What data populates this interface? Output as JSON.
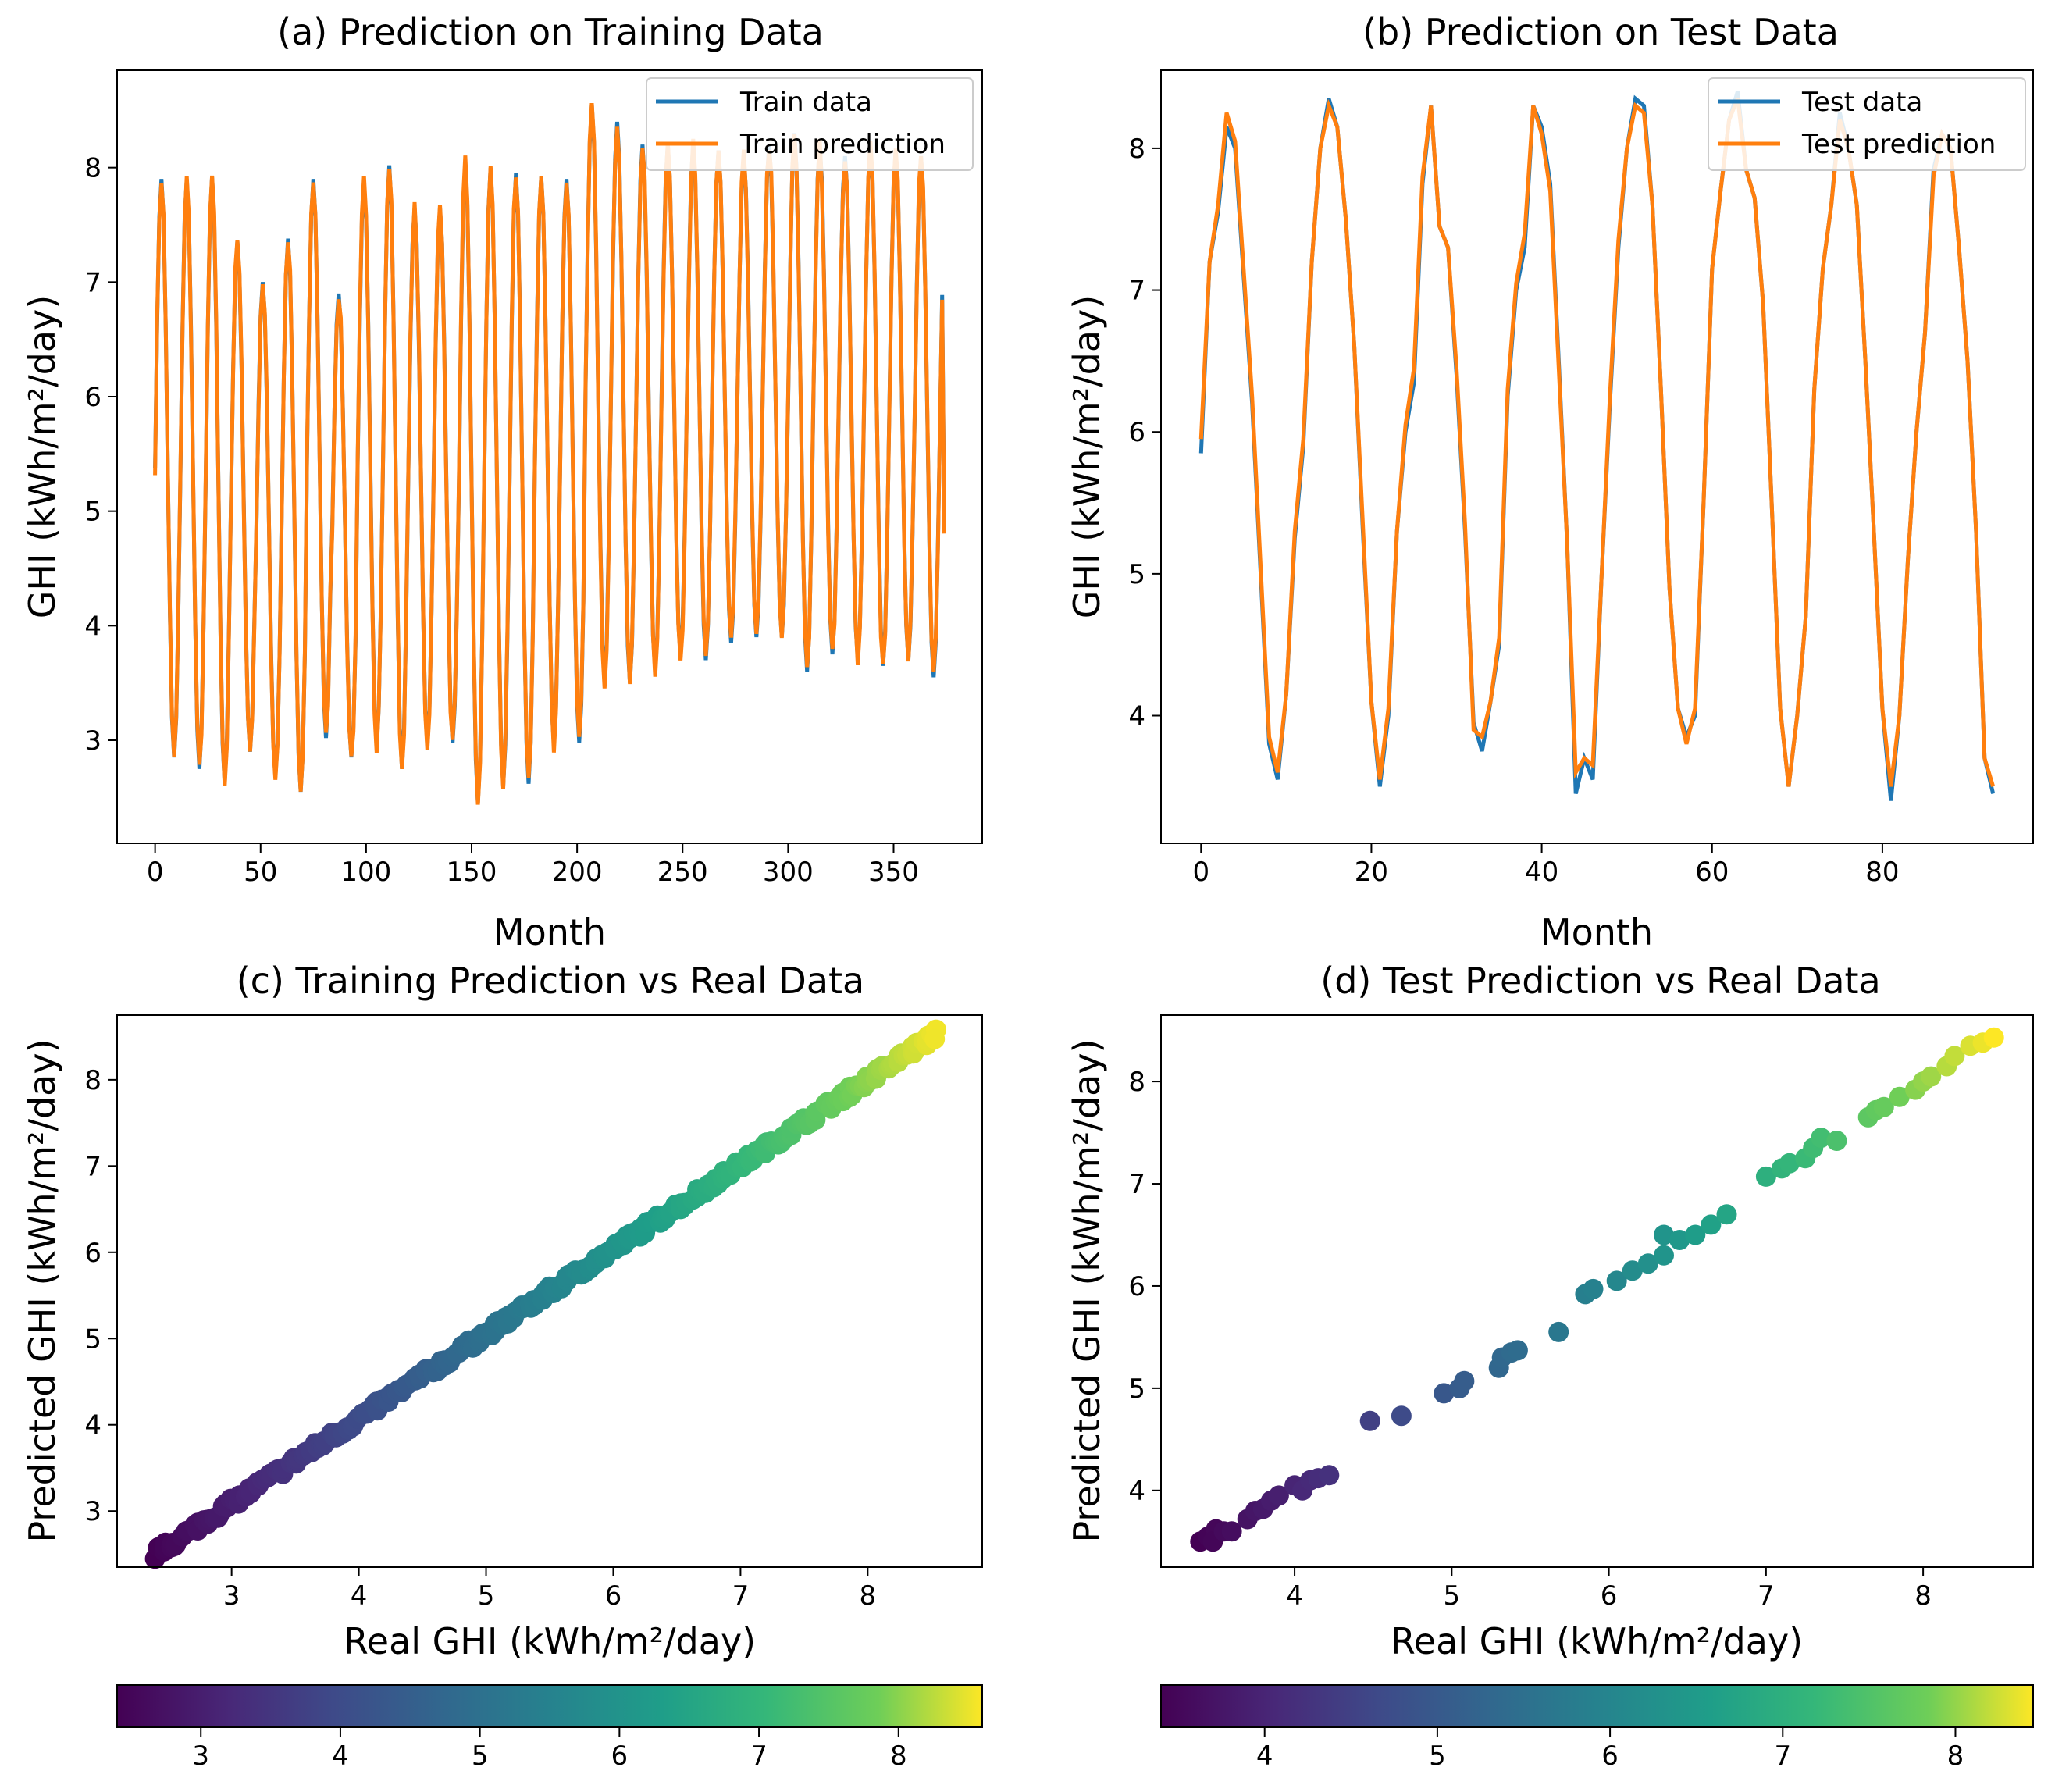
{
  "chart_data": [
    {
      "id": "a",
      "type": "line",
      "title": "(a) Prediction on Training Data",
      "xlabel": "Month",
      "ylabel": "GHI (kWh/m²/day)",
      "xlim": [
        -18,
        392
      ],
      "ylim": [
        2.1,
        8.85
      ],
      "xticks": [
        0,
        50,
        100,
        150,
        200,
        250,
        300,
        350
      ],
      "yticks": [
        3,
        4,
        5,
        6,
        7,
        8
      ],
      "legend_position": "top-right",
      "generator": "monthly-seasonal",
      "n": 375,
      "phase": 3,
      "period": 12,
      "series": [
        {
          "name": "Train data",
          "color": "#1f77b4"
        },
        {
          "name": "Train prediction",
          "color": "#ff7f0e"
        }
      ],
      "yearly_peak": [
        7.9,
        7.9,
        7.92,
        7.36,
        7.0,
        7.38,
        7.9,
        6.9,
        7.88,
        8.02,
        7.65,
        7.65,
        8.05,
        8.0,
        7.95,
        7.92,
        7.9,
        8.55,
        8.4,
        8.2,
        8.2,
        8.2,
        8.15,
        8.1,
        8.2,
        8.3,
        8.2,
        8.1,
        8.2,
        8.15,
        8.1,
        8.0
      ],
      "yearly_trough": [
        2.85,
        2.75,
        2.62,
        2.9,
        2.68,
        2.55,
        3.02,
        2.85,
        2.95,
        2.75,
        2.95,
        2.98,
        2.45,
        2.6,
        2.62,
        2.95,
        2.98,
        3.5,
        3.5,
        3.6,
        3.72,
        3.7,
        3.85,
        3.9,
        3.9,
        3.6,
        3.75,
        3.7,
        3.65,
        3.7,
        3.55,
        3.55
      ],
      "end_value": 4.85
    },
    {
      "id": "b",
      "type": "line",
      "title": "(b) Prediction on Test Data",
      "xlabel": "Month",
      "ylabel": "GHI (kWh/m²/day)",
      "xlim": [
        -4.7,
        97.7
      ],
      "ylim": [
        3.1,
        8.55
      ],
      "xticks": [
        0,
        20,
        40,
        60,
        80
      ],
      "yticks": [
        4,
        5,
        6,
        7,
        8
      ],
      "legend_position": "top-right",
      "series": [
        {
          "name": "Test data",
          "color": "#1f77b4",
          "values": [
            5.85,
            7.2,
            7.55,
            8.15,
            8.0,
            7.1,
            6.2,
            5.0,
            3.8,
            3.55,
            4.15,
            5.25,
            5.9,
            7.2,
            8.0,
            8.35,
            8.15,
            7.5,
            6.6,
            5.3,
            4.1,
            3.5,
            4.0,
            5.3,
            6.0,
            6.35,
            7.75,
            8.3,
            7.45,
            7.3,
            6.4,
            5.3,
            3.95,
            3.75,
            4.1,
            4.5,
            6.25,
            7.0,
            7.3,
            8.3,
            8.15,
            7.75,
            6.5,
            5.2,
            3.45,
            3.7,
            3.55,
            4.95,
            6.2,
            7.3,
            8.0,
            8.35,
            8.3,
            7.6,
            6.3,
            4.9,
            4.05,
            3.85,
            4.0,
            5.5,
            7.15,
            7.7,
            8.2,
            8.4,
            7.85,
            7.65,
            6.9,
            5.5,
            4.05,
            3.5,
            4.0,
            4.7,
            6.3,
            7.15,
            7.6,
            8.25,
            8.0,
            7.6,
            6.5,
            5.3,
            4.05,
            3.4,
            4.0,
            5.1,
            6.0,
            6.7,
            7.85,
            8.1,
            8.0,
            7.3,
            6.5,
            5.3,
            3.7,
            3.45
          ]
        },
        {
          "name": "Test prediction",
          "color": "#ff7f0e",
          "values": [
            5.95,
            7.2,
            7.6,
            8.25,
            8.05,
            7.15,
            6.25,
            5.05,
            3.85,
            3.6,
            4.15,
            5.3,
            5.95,
            7.2,
            8.0,
            8.3,
            8.15,
            7.5,
            6.6,
            5.35,
            4.1,
            3.55,
            4.05,
            5.3,
            6.05,
            6.45,
            7.8,
            8.3,
            7.45,
            7.3,
            6.45,
            5.35,
            3.9,
            3.85,
            4.1,
            4.55,
            6.3,
            7.05,
            7.4,
            8.3,
            8.1,
            7.7,
            6.45,
            5.2,
            3.6,
            3.7,
            3.65,
            4.95,
            6.25,
            7.35,
            8.0,
            8.3,
            8.25,
            7.6,
            6.3,
            4.9,
            4.05,
            3.8,
            4.05,
            5.5,
            7.15,
            7.7,
            8.2,
            8.35,
            7.85,
            7.65,
            6.9,
            5.5,
            4.05,
            3.5,
            4.0,
            4.7,
            6.3,
            7.15,
            7.6,
            8.2,
            8.0,
            7.6,
            6.5,
            5.3,
            4.05,
            3.5,
            4.0,
            5.1,
            6.0,
            6.7,
            7.8,
            8.1,
            8.0,
            7.3,
            6.5,
            5.3,
            3.7,
            3.5
          ]
        }
      ]
    },
    {
      "id": "c",
      "type": "scatter",
      "title": "(c) Training Prediction vs Real Data",
      "xlabel": "Real GHI (kWh/m²/day)",
      "ylabel": "Predicted GHI (kWh/m²/day)",
      "xlim": [
        2.1,
        8.9
      ],
      "ylim": [
        2.35,
        8.75
      ],
      "xticks": [
        3,
        4,
        5,
        6,
        7,
        8
      ],
      "yticks": [
        3,
        4,
        5,
        6,
        7,
        8
      ],
      "generator": "dense-diagonal",
      "n": 300,
      "range": [
        2.4,
        8.55
      ],
      "colorbar": {
        "min": 2.4,
        "max": 8.6,
        "ticks": [
          3,
          4,
          5,
          6,
          7,
          8
        ]
      }
    },
    {
      "id": "d",
      "type": "scatter",
      "title": "(d) Test Prediction vs Real Data",
      "xlabel": "Real GHI (kWh/m²/day)",
      "ylabel": "Predicted GHI (kWh/m²/day)",
      "xlim": [
        3.15,
        8.7
      ],
      "ylim": [
        3.25,
        8.65
      ],
      "xticks": [
        4,
        5,
        6,
        7,
        8
      ],
      "yticks": [
        4,
        5,
        6,
        7,
        8
      ],
      "points": [
        [
          3.4,
          3.5
        ],
        [
          3.45,
          3.55
        ],
        [
          3.5,
          3.62
        ],
        [
          3.48,
          3.5
        ],
        [
          3.55,
          3.6
        ],
        [
          3.6,
          3.6
        ],
        [
          3.7,
          3.72
        ],
        [
          3.75,
          3.8
        ],
        [
          3.8,
          3.82
        ],
        [
          3.85,
          3.9
        ],
        [
          3.9,
          3.95
        ],
        [
          4.0,
          4.05
        ],
        [
          4.05,
          4.0
        ],
        [
          4.1,
          4.1
        ],
        [
          4.15,
          4.12
        ],
        [
          4.22,
          4.15
        ],
        [
          4.48,
          4.68
        ],
        [
          4.68,
          4.73
        ],
        [
          4.95,
          4.95
        ],
        [
          5.05,
          5.0
        ],
        [
          5.08,
          5.07
        ],
        [
          5.3,
          5.2
        ],
        [
          5.32,
          5.3
        ],
        [
          5.38,
          5.35
        ],
        [
          5.42,
          5.37
        ],
        [
          5.68,
          5.55
        ],
        [
          5.85,
          5.92
        ],
        [
          5.9,
          5.97
        ],
        [
          6.05,
          6.05
        ],
        [
          6.15,
          6.15
        ],
        [
          6.25,
          6.22
        ],
        [
          6.35,
          6.3
        ],
        [
          6.35,
          6.5
        ],
        [
          6.45,
          6.45
        ],
        [
          6.55,
          6.5
        ],
        [
          6.65,
          6.6
        ],
        [
          6.75,
          6.7
        ],
        [
          7.0,
          7.07
        ],
        [
          7.1,
          7.15
        ],
        [
          7.15,
          7.2
        ],
        [
          7.25,
          7.25
        ],
        [
          7.3,
          7.35
        ],
        [
          7.35,
          7.45
        ],
        [
          7.45,
          7.42
        ],
        [
          7.65,
          7.65
        ],
        [
          7.7,
          7.72
        ],
        [
          7.75,
          7.75
        ],
        [
          7.85,
          7.85
        ],
        [
          7.95,
          7.92
        ],
        [
          8.0,
          8.0
        ],
        [
          8.05,
          8.05
        ],
        [
          8.15,
          8.15
        ],
        [
          8.2,
          8.25
        ],
        [
          8.3,
          8.35
        ],
        [
          8.38,
          8.38
        ],
        [
          8.45,
          8.43
        ]
      ],
      "colorbar": {
        "min": 3.4,
        "max": 8.45,
        "ticks": [
          4,
          5,
          6,
          7,
          8
        ]
      }
    }
  ]
}
